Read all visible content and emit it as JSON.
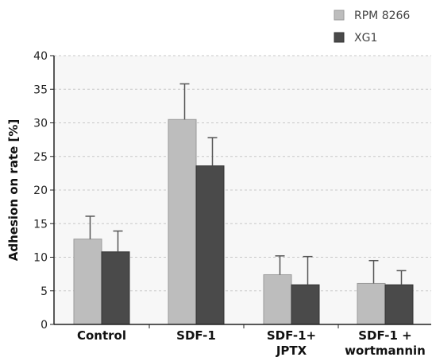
{
  "chart_data": {
    "type": "bar",
    "title": "",
    "xlabel": "",
    "ylabel": "Adhesion on rate [%]",
    "ylim": [
      0,
      40
    ],
    "yticks": [
      0,
      5,
      10,
      15,
      20,
      25,
      30,
      35,
      40
    ],
    "grid": true,
    "legend_position": "top-right",
    "categories": [
      [
        "Control"
      ],
      [
        "SDF-1"
      ],
      [
        "SDF-1+",
        "JPTX"
      ],
      [
        "SDF-1 +",
        "wortmannin"
      ]
    ],
    "series": [
      {
        "name": "RPM 8266",
        "color": "#bdbdbd",
        "values": [
          12.7,
          30.5,
          7.4,
          6.1
        ],
        "errors": [
          3.4,
          5.3,
          2.8,
          3.4
        ]
      },
      {
        "name": "XG1",
        "color": "#4a4a4a",
        "values": [
          10.8,
          23.6,
          5.9,
          5.9
        ],
        "errors": [
          3.1,
          4.2,
          4.2,
          2.1
        ]
      }
    ]
  }
}
